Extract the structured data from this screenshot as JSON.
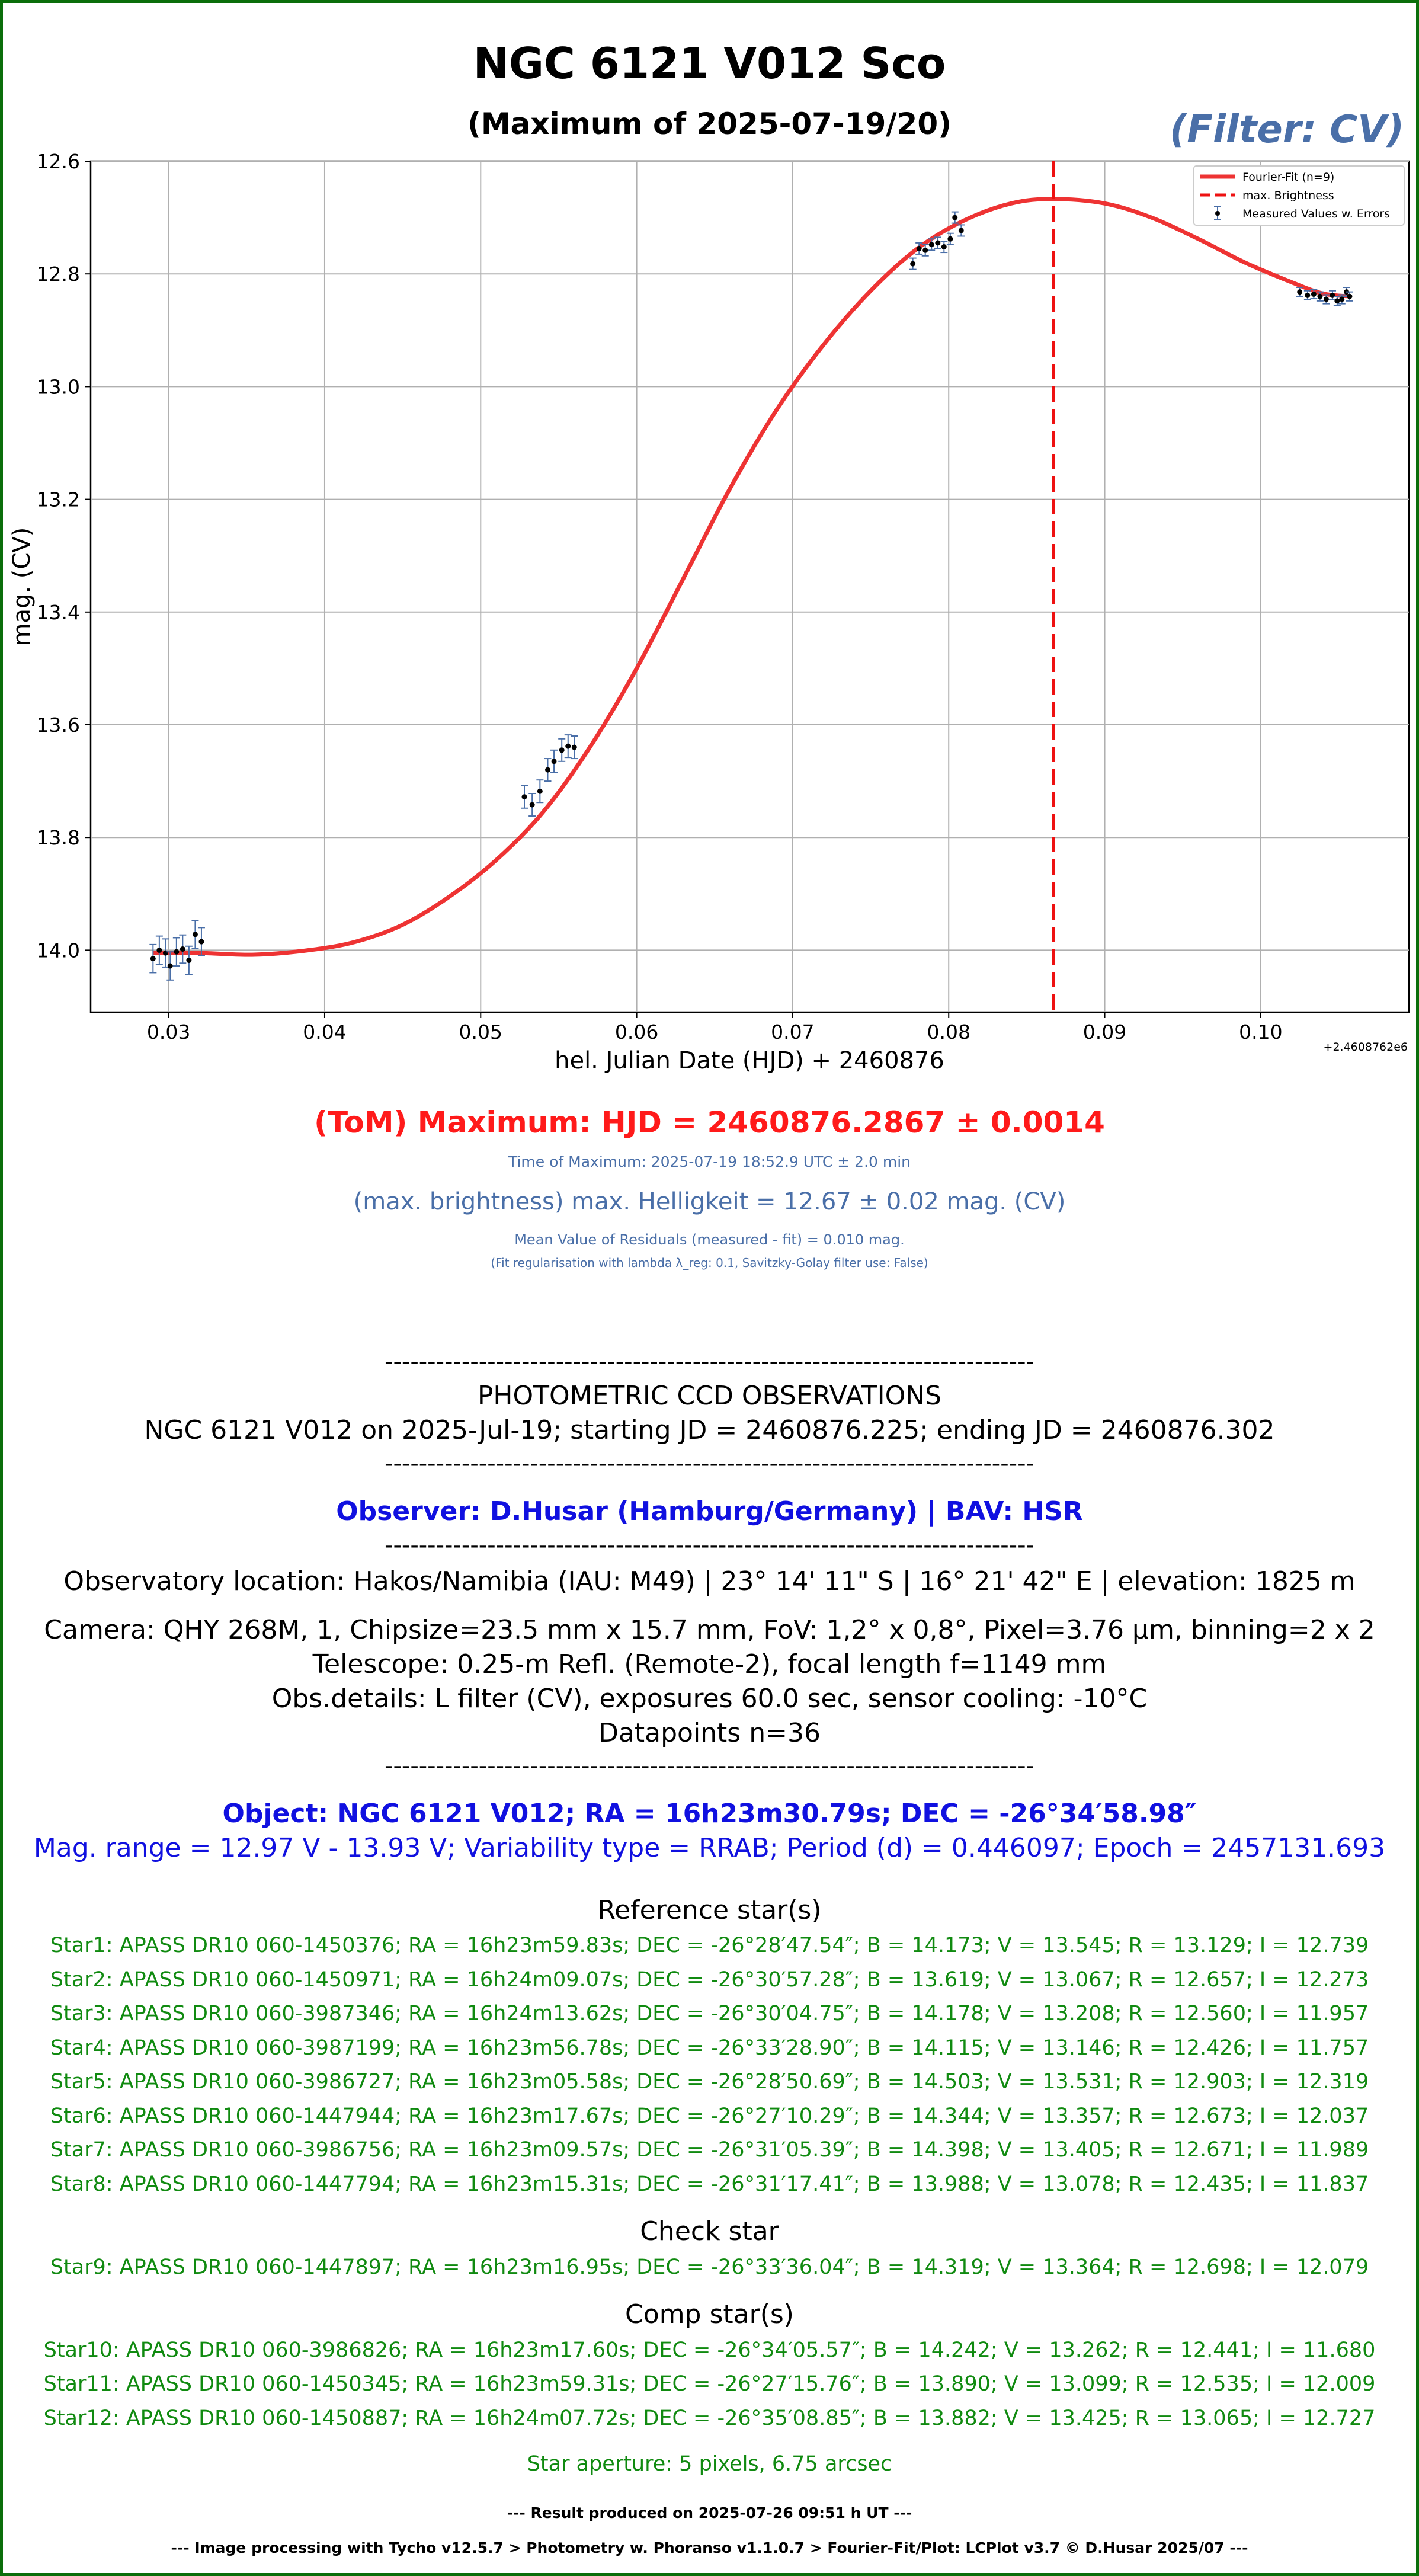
{
  "header": {
    "title": "NGC 6121 V012 Sco",
    "subtitle": "(Maximum of 2025-07-19/20)",
    "filter": "(Filter: CV)"
  },
  "chart_data": {
    "type": "scatter",
    "xlabel": "hel. Julian Date (HJD) + 2460876",
    "ylabel": "mag. (CV)",
    "offset_label": "+2.4608762e6",
    "xlim": [
      0.025,
      0.1095
    ],
    "ylim": [
      12.6,
      14.11
    ],
    "y_inverted": true,
    "grid": true,
    "legend_position": "upper right",
    "x_ticks": [
      "0.03",
      "0.04",
      "0.05",
      "0.06",
      "0.07",
      "0.08",
      "0.09",
      "0.10"
    ],
    "x_tick_values": [
      0.03,
      0.04,
      0.05,
      0.06,
      0.07,
      0.08,
      0.09,
      0.1
    ],
    "y_ticks": [
      "12.6",
      "12.8",
      "13.0",
      "13.2",
      "13.4",
      "13.6",
      "13.8",
      "14.0"
    ],
    "y_tick_values": [
      12.6,
      12.8,
      13.0,
      13.2,
      13.4,
      13.6,
      13.8,
      14.0
    ],
    "legend": [
      {
        "label": "Fourier-Fit (n=9)",
        "style": "solid",
        "color": "#ee3333"
      },
      {
        "label": "max. Brightness",
        "style": "dashed",
        "color": "#ee1111"
      },
      {
        "label": "Measured Values w. Errors",
        "style": "errorbar",
        "color": "#000000"
      }
    ],
    "max_x": 0.0867,
    "fit_curve": [
      {
        "x": 0.029,
        "y": 14.005
      },
      {
        "x": 0.032,
        "y": 14.005
      },
      {
        "x": 0.0355,
        "y": 14.008
      },
      {
        "x": 0.039,
        "y": 14.0
      },
      {
        "x": 0.042,
        "y": 13.985
      },
      {
        "x": 0.045,
        "y": 13.955
      },
      {
        "x": 0.048,
        "y": 13.905
      },
      {
        "x": 0.051,
        "y": 13.84
      },
      {
        "x": 0.054,
        "y": 13.755
      },
      {
        "x": 0.057,
        "y": 13.64
      },
      {
        "x": 0.06,
        "y": 13.5
      },
      {
        "x": 0.063,
        "y": 13.34
      },
      {
        "x": 0.066,
        "y": 13.18
      },
      {
        "x": 0.069,
        "y": 13.04
      },
      {
        "x": 0.072,
        "y": 12.925
      },
      {
        "x": 0.075,
        "y": 12.83
      },
      {
        "x": 0.078,
        "y": 12.755
      },
      {
        "x": 0.081,
        "y": 12.705
      },
      {
        "x": 0.084,
        "y": 12.675
      },
      {
        "x": 0.0867,
        "y": 12.667
      },
      {
        "x": 0.09,
        "y": 12.675
      },
      {
        "x": 0.093,
        "y": 12.7
      },
      {
        "x": 0.096,
        "y": 12.738
      },
      {
        "x": 0.099,
        "y": 12.78
      },
      {
        "x": 0.102,
        "y": 12.815
      },
      {
        "x": 0.104,
        "y": 12.835
      },
      {
        "x": 0.1058,
        "y": 12.84
      }
    ],
    "points": [
      {
        "x": 0.029,
        "y": 14.015,
        "err": 0.025
      },
      {
        "x": 0.0294,
        "y": 14.0,
        "err": 0.025
      },
      {
        "x": 0.0298,
        "y": 14.005,
        "err": 0.025
      },
      {
        "x": 0.0301,
        "y": 14.028,
        "err": 0.025
      },
      {
        "x": 0.0305,
        "y": 14.003,
        "err": 0.025
      },
      {
        "x": 0.0309,
        "y": 13.998,
        "err": 0.025
      },
      {
        "x": 0.0313,
        "y": 14.018,
        "err": 0.025
      },
      {
        "x": 0.0317,
        "y": 13.972,
        "err": 0.025
      },
      {
        "x": 0.0321,
        "y": 13.985,
        "err": 0.025
      },
      {
        "x": 0.0528,
        "y": 13.728,
        "err": 0.02
      },
      {
        "x": 0.0533,
        "y": 13.742,
        "err": 0.02
      },
      {
        "x": 0.0538,
        "y": 13.718,
        "err": 0.02
      },
      {
        "x": 0.0543,
        "y": 13.68,
        "err": 0.02
      },
      {
        "x": 0.0547,
        "y": 13.665,
        "err": 0.02
      },
      {
        "x": 0.0552,
        "y": 13.645,
        "err": 0.02
      },
      {
        "x": 0.0556,
        "y": 13.638,
        "err": 0.02
      },
      {
        "x": 0.056,
        "y": 13.64,
        "err": 0.02
      },
      {
        "x": 0.0777,
        "y": 12.782,
        "err": 0.01
      },
      {
        "x": 0.0781,
        "y": 12.755,
        "err": 0.01
      },
      {
        "x": 0.0785,
        "y": 12.758,
        "err": 0.01
      },
      {
        "x": 0.0789,
        "y": 12.748,
        "err": 0.01
      },
      {
        "x": 0.0793,
        "y": 12.745,
        "err": 0.01
      },
      {
        "x": 0.0797,
        "y": 12.752,
        "err": 0.01
      },
      {
        "x": 0.0801,
        "y": 12.738,
        "err": 0.01
      },
      {
        "x": 0.0804,
        "y": 12.7,
        "err": 0.01
      },
      {
        "x": 0.0808,
        "y": 12.723,
        "err": 0.01
      },
      {
        "x": 0.1025,
        "y": 12.832,
        "err": 0.008
      },
      {
        "x": 0.103,
        "y": 12.838,
        "err": 0.008
      },
      {
        "x": 0.1034,
        "y": 12.836,
        "err": 0.008
      },
      {
        "x": 0.1038,
        "y": 12.84,
        "err": 0.008
      },
      {
        "x": 0.1042,
        "y": 12.845,
        "err": 0.008
      },
      {
        "x": 0.1046,
        "y": 12.838,
        "err": 0.008
      },
      {
        "x": 0.1049,
        "y": 12.848,
        "err": 0.008
      },
      {
        "x": 0.1052,
        "y": 12.845,
        "err": 0.008
      },
      {
        "x": 0.1055,
        "y": 12.832,
        "err": 0.008
      },
      {
        "x": 0.1057,
        "y": 12.84,
        "err": 0.008
      }
    ]
  },
  "results": {
    "tom": "(ToM) Maximum: HJD = 2460876.2867 ± 0.0014",
    "time_max": "Time of Maximum:   2025-07-19   18:52.9 UTC ± 2.0 min",
    "max_brightness": "(max. brightness) max. Helligkeit = 12.67 ± 0.02 mag. (CV)",
    "residuals": "Mean Value of Residuals (measured - fit) = 0.010 mag.",
    "regularisation": "(Fit regularisation with lambda λ_reg: 0.1, Savitzky-Golay filter use: False)"
  },
  "observations": {
    "separator": "----------------------------------------------------------------------------",
    "heading": "PHOTOMETRIC CCD OBSERVATIONS",
    "summary": "NGC 6121 V012 on 2025-Jul-19; starting JD = 2460876.225; ending JD = 2460876.302",
    "observer": "Observer: D.Husar (Hamburg/Germany) | BAV: HSR",
    "location": "Observatory location: Hakos/Namibia (IAU: M49) | 23° 14' 11\" S | 16° 21' 42\" E | elevation: 1825 m",
    "camera": "Camera: QHY 268M, 1, Chipsize=23.5 mm x 15.7 mm, FoV: 1,2° x 0,8°, Pixel=3.76 µm, binning=2 x 2",
    "telescope": "Telescope: 0.25-m Refl. (Remote-2), focal length f=1149 mm",
    "details": "Obs.details: L filter (CV), exposures 60.0 sec, sensor cooling: -10°C",
    "datapoints": "Datapoints n=36"
  },
  "object": {
    "line1": "Object: NGC 6121 V012; RA = 16h23m30.79s; DEC = -26°34′58.98″",
    "line2": "Mag. range = 12.97 V - 13.93 V; Variability type = RRAB; Period (d) = 0.446097; Epoch = 2457131.693"
  },
  "reference": {
    "heading": "Reference star(s)",
    "stars": [
      "Star1: APASS DR10 060-1450376; RA = 16h23m59.83s; DEC = -26°28′47.54″; B = 14.173; V = 13.545; R = 13.129; I = 12.739",
      "Star2: APASS DR10 060-1450971; RA = 16h24m09.07s; DEC = -26°30′57.28″; B = 13.619; V = 13.067; R = 12.657; I = 12.273",
      "Star3: APASS DR10 060-3987346; RA = 16h24m13.62s; DEC = -26°30′04.75″; B = 14.178; V = 13.208; R = 12.560; I = 11.957",
      "Star4: APASS DR10 060-3987199; RA = 16h23m56.78s; DEC = -26°33′28.90″; B = 14.115; V = 13.146; R = 12.426; I = 11.757",
      "Star5: APASS DR10 060-3986727; RA = 16h23m05.58s; DEC = -26°28′50.69″; B = 14.503; V = 13.531; R = 12.903; I = 12.319",
      "Star6: APASS DR10 060-1447944; RA = 16h23m17.67s; DEC = -26°27′10.29″; B = 14.344; V = 13.357; R = 12.673; I = 12.037",
      "Star7: APASS DR10 060-3986756; RA = 16h23m09.57s; DEC = -26°31′05.39″; B = 14.398; V = 13.405; R = 12.671; I = 11.989",
      "Star8: APASS DR10 060-1447794; RA = 16h23m15.31s; DEC = -26°31′17.41″; B = 13.988; V = 13.078; R = 12.435; I = 11.837"
    ]
  },
  "check": {
    "heading": "Check star",
    "star": "Star9: APASS DR10 060-1447897; RA = 16h23m16.95s; DEC = -26°33′36.04″; B = 14.319; V = 13.364; R = 12.698; I = 12.079"
  },
  "comp": {
    "heading": "Comp star(s)",
    "stars": [
      "Star10: APASS DR10 060-3986826; RA = 16h23m17.60s; DEC = -26°34′05.57″; B = 14.242; V = 13.262; R = 12.441; I = 11.680",
      "Star11: APASS DR10 060-1450345; RA = 16h23m59.31s; DEC = -26°27′15.76″; B = 13.890; V = 13.099; R = 12.535; I = 12.009",
      "Star12: APASS DR10 060-1450887; RA = 16h24m07.72s; DEC = -26°35′08.85″; B = 13.882; V = 13.425; R = 13.065; I = 12.727"
    ]
  },
  "aperture": "Star aperture: 5 pixels, 6.75 arcsec",
  "footer": {
    "result": "--- Result produced on 2025-07-26 09:51 h UT ---",
    "processing": "--- Image processing with Tycho v12.5.7 > Photometry w. Phoranso v1.1.0.7 > Fourier-Fit/Plot: LCPlot v3.7 © D.Husar 2025/07 ---"
  }
}
